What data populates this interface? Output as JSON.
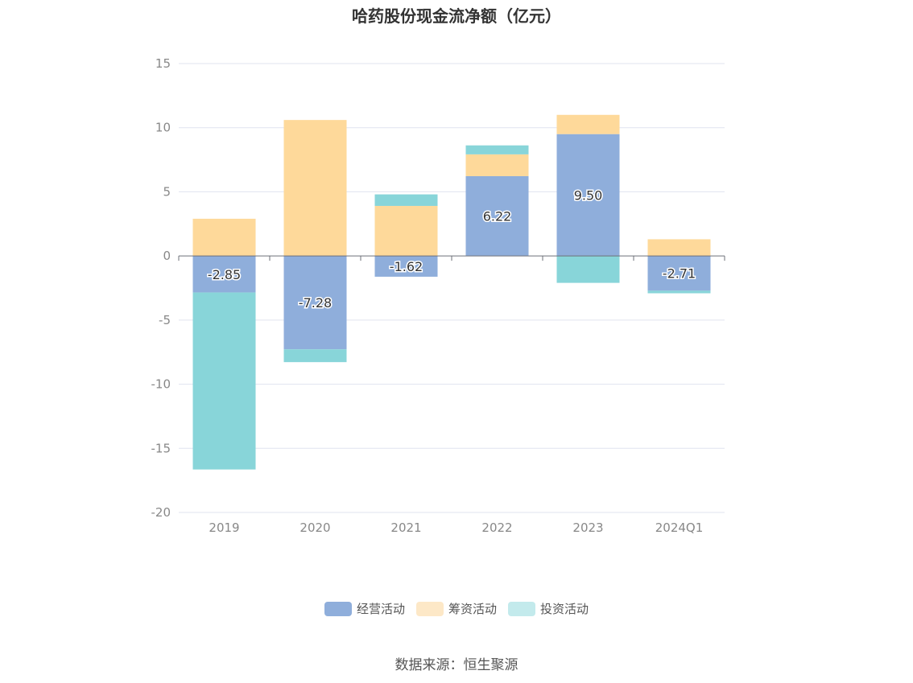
{
  "chart_data": {
    "type": "bar",
    "stacked": true,
    "title": "哈药股份现金流净额（亿元）",
    "categories": [
      "2019",
      "2020",
      "2021",
      "2022",
      "2023",
      "2024Q1"
    ],
    "series": [
      {
        "name": "经营活动",
        "color": "#8faedb",
        "values": [
          -2.85,
          -7.28,
          -1.62,
          6.22,
          9.5,
          -2.71
        ]
      },
      {
        "name": "筹资活动",
        "color": "#fed99a",
        "values": [
          2.9,
          10.6,
          3.9,
          1.7,
          1.5,
          1.3
        ]
      },
      {
        "name": "投资活动",
        "color": "#88d5d9",
        "values": [
          -13.8,
          -1.0,
          0.9,
          0.7,
          -2.1,
          -0.2
        ]
      }
    ],
    "data_labels": [
      "-2.85",
      "-7.28",
      "-1.62",
      "6.22",
      "9.50",
      "-2.71"
    ],
    "yticks": [
      "15",
      "10",
      "5",
      "0",
      "-5",
      "-10",
      "-15",
      "-20"
    ],
    "ylim": [
      -20,
      15
    ],
    "grid": true,
    "legend_position": "bottom"
  },
  "legend_colors": {
    "经营活动": "#8faedb",
    "筹资活动": "#fde8c7",
    "投资活动": "#c3eaec"
  },
  "source": "数据来源：恒生聚源"
}
